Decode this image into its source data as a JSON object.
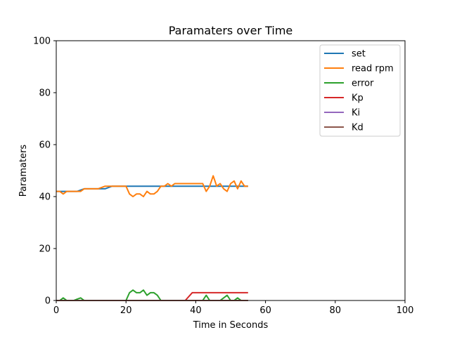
{
  "chart_data": {
    "type": "line",
    "title": "Paramaters over Time",
    "xlabel": "Time in Seconds",
    "ylabel": "Paramaters",
    "xlim": [
      0,
      100
    ],
    "ylim": [
      0,
      100
    ],
    "xticks": [
      0,
      20,
      40,
      60,
      80,
      100
    ],
    "yticks": [
      0,
      20,
      40,
      60,
      80,
      100
    ],
    "grid": false,
    "legend_position": "top-right",
    "series": [
      {
        "name": "set",
        "color": "#1f77b4",
        "x": [
          0,
          2,
          4,
          6,
          8,
          10,
          12,
          14,
          16,
          18,
          20,
          22,
          24,
          26,
          28,
          30,
          32,
          34,
          36,
          38,
          40,
          42,
          44,
          46,
          48,
          50,
          52,
          54,
          55
        ],
        "y": [
          42,
          42,
          42,
          42,
          43,
          43,
          43,
          43,
          44,
          44,
          44,
          44,
          44,
          44,
          44,
          44,
          44,
          44,
          44,
          44,
          44,
          44,
          44,
          44,
          44,
          44,
          44,
          44,
          44
        ]
      },
      {
        "name": "read rpm",
        "color": "#ff7f0e",
        "x": [
          0,
          1,
          2,
          3,
          4,
          5,
          6,
          7,
          8,
          9,
          10,
          11,
          12,
          13,
          14,
          15,
          16,
          17,
          18,
          19,
          20,
          21,
          22,
          23,
          24,
          25,
          26,
          27,
          28,
          29,
          30,
          31,
          32,
          33,
          34,
          35,
          36,
          37,
          38,
          39,
          40,
          41,
          42,
          43,
          44,
          45,
          46,
          47,
          48,
          49,
          50,
          51,
          52,
          53,
          54,
          55
        ],
        "y": [
          42,
          42,
          41,
          42,
          42,
          42,
          42,
          42,
          43,
          43,
          43,
          43,
          43,
          43.5,
          44,
          44,
          44,
          44,
          44,
          44,
          44,
          41,
          40,
          41,
          41,
          40,
          42,
          41,
          41,
          42,
          44,
          44,
          45,
          44,
          45,
          45,
          45,
          45,
          45,
          45,
          45,
          45,
          45,
          42,
          44,
          48,
          44,
          45,
          43,
          42,
          45,
          46,
          43,
          46,
          44,
          44
        ]
      },
      {
        "name": "error",
        "color": "#2ca02c",
        "x": [
          0,
          1,
          2,
          3,
          4,
          5,
          6,
          7,
          8,
          9,
          10,
          11,
          12,
          13,
          14,
          15,
          16,
          17,
          18,
          19,
          20,
          21,
          22,
          23,
          24,
          25,
          26,
          27,
          28,
          29,
          30,
          31,
          32,
          33,
          34,
          35,
          36,
          37,
          38,
          39,
          40,
          41,
          42,
          43,
          44,
          45,
          46,
          47,
          48,
          49,
          50,
          51,
          52,
          53,
          54,
          55
        ],
        "y": [
          0,
          0,
          1,
          0,
          0,
          0,
          0.5,
          1,
          0,
          0,
          0,
          0,
          0,
          0,
          0,
          0,
          0,
          0,
          0,
          0,
          0,
          3,
          4,
          3,
          3,
          4,
          2,
          3,
          3,
          2,
          0,
          0,
          0,
          0,
          0,
          0,
          0,
          0,
          0,
          0,
          0,
          0,
          0,
          2,
          0,
          0,
          0,
          0,
          1,
          2,
          0,
          0,
          1,
          0,
          0,
          0
        ]
      },
      {
        "name": "Kp",
        "color": "#d62728",
        "x": [
          0,
          37,
          39,
          55
        ],
        "y": [
          0,
          0,
          3,
          3
        ]
      },
      {
        "name": "Ki",
        "color": "#9467bd",
        "x": [
          0,
          55
        ],
        "y": [
          0,
          0
        ]
      },
      {
        "name": "Kd",
        "color": "#8c564b",
        "x": [
          0,
          55
        ],
        "y": [
          0,
          0
        ]
      }
    ]
  }
}
